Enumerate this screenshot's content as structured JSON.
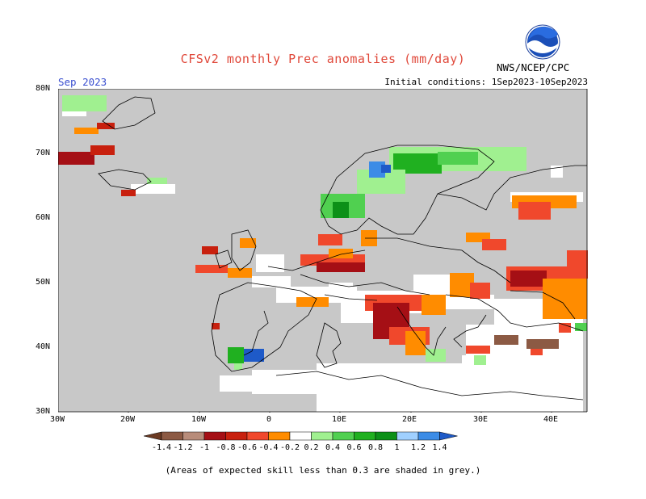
{
  "header": {
    "title": "CFSv2 monthly Prec anomalies (mm/day)",
    "month": "Sep 2023",
    "initial_conditions": "Initial conditions: 1Sep2023-10Sep2023",
    "agency": "NWS/NCEP/CPC",
    "logo_icon": "noaa-logo-icon"
  },
  "map": {
    "region": "Europe",
    "lat_labels": [
      "80N",
      "70N",
      "60N",
      "50N",
      "40N",
      "30N"
    ],
    "lon_labels": [
      "30W",
      "20W",
      "10W",
      "0",
      "10E",
      "20E",
      "30E",
      "40E"
    ],
    "background_color": "#c8c8c8"
  },
  "colorbar": {
    "labels": [
      "-1.4",
      "-1.2",
      "-1",
      "-0.8",
      "-0.6",
      "-0.4",
      "-0.2",
      "0.2",
      "0.4",
      "0.6",
      "0.8",
      "1",
      "1.2",
      "1.4"
    ],
    "colors": [
      "#6b3a22",
      "#8c5a44",
      "#b88c7a",
      "#a50f15",
      "#c8200e",
      "#f0482c",
      "#ff8c00",
      "#ffffff",
      "#a0f090",
      "#50d050",
      "#20b020",
      "#0c9018",
      "#a0d0ff",
      "#3c8ce6",
      "#1e5ac8"
    ]
  },
  "footnote": "(Areas of expected skill less than 0.3 are shaded in grey.)"
}
